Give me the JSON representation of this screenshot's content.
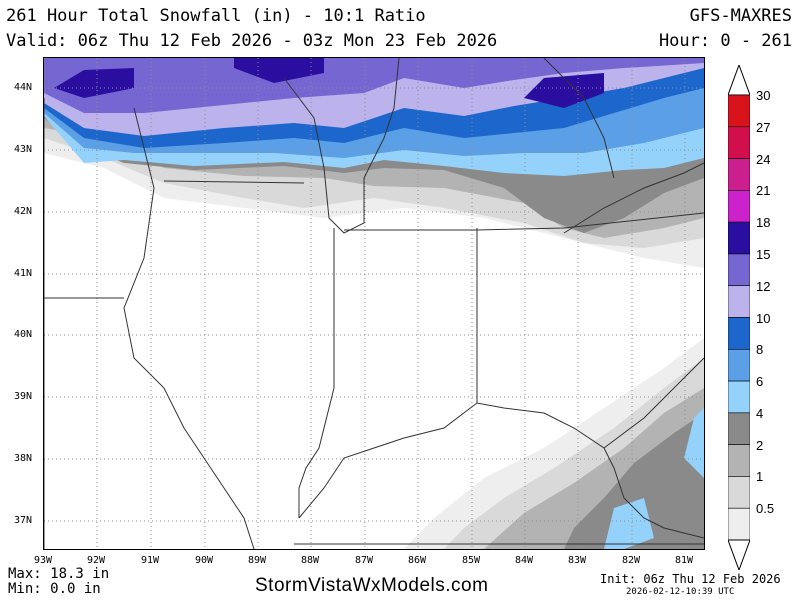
{
  "header": {
    "title": "261 Hour Total Snowfall (in) - 10:1 Ratio",
    "model": "GFS-MAXRES",
    "valid": "Valid: 06z Thu 12 Feb 2026 - 03z Mon 23 Feb 2026",
    "hour": "Hour: 0 - 261"
  },
  "map": {
    "lat_labels": [
      "44N",
      "43N",
      "42N",
      "41N",
      "40N",
      "39N",
      "38N",
      "37N"
    ],
    "lon_labels": [
      "93W",
      "92W",
      "91W",
      "90W",
      "89W",
      "88W",
      "87W",
      "86W",
      "85W",
      "84W",
      "83W",
      "82W",
      "81W"
    ]
  },
  "legend": {
    "labels": [
      "30",
      "27",
      "24",
      "21",
      "18",
      "15",
      "12",
      "10",
      "8",
      "6",
      "4",
      "2",
      "1",
      "0.5"
    ],
    "colors": [
      "#d8131b",
      "#d10f4d",
      "#cc1f8e",
      "#cc22cc",
      "#2a0ea0",
      "#7566d2",
      "#bcb2ec",
      "#1d67cc",
      "#5b9fe6",
      "#94d2fb",
      "#8a8a8a",
      "#b3b3b3",
      "#d9d9d9",
      "#eeeeee"
    ]
  },
  "footer": {
    "max": "Max: 18.3 in",
    "min": "Min: 0.0 in",
    "site": "StormVistaWxModels.com",
    "init": "Init: 06z Thu 12 Feb 2026",
    "timestamp": "2026-02-12-10:39 UTC"
  }
}
